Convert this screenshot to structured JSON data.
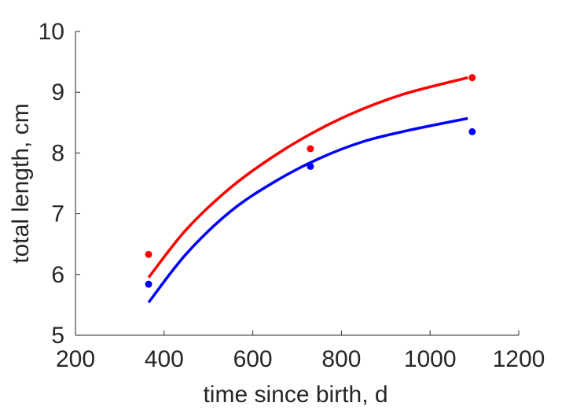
{
  "chart_data": {
    "type": "scatter",
    "xlabel": "time since birth, d",
    "ylabel": "total length, cm",
    "xlim": [
      200,
      1200
    ],
    "ylim": [
      5,
      10
    ],
    "xticks": [
      200,
      400,
      600,
      800,
      1000,
      1200
    ],
    "yticks": [
      5,
      6,
      7,
      8,
      9,
      10
    ],
    "grid": false,
    "box": false,
    "series": [
      {
        "color": "#ff0000",
        "points": [
          [
            365,
            6.33
          ],
          [
            730,
            8.07
          ],
          [
            1095,
            9.24
          ]
        ],
        "fit": {
          "x": [
            365,
            450,
            550,
            650,
            750,
            850,
            950,
            1085
          ],
          "y": [
            5.95,
            6.74,
            7.43,
            7.96,
            8.39,
            8.73,
            8.99,
            9.24
          ]
        }
      },
      {
        "color": "#0000ff",
        "points": [
          [
            365,
            5.84
          ],
          [
            730,
            7.78
          ],
          [
            1095,
            8.35
          ]
        ],
        "fit": {
          "x": [
            365,
            450,
            550,
            650,
            750,
            850,
            950,
            1085
          ],
          "y": [
            5.54,
            6.34,
            7.04,
            7.53,
            7.91,
            8.19,
            8.37,
            8.57
          ]
        }
      }
    ]
  }
}
